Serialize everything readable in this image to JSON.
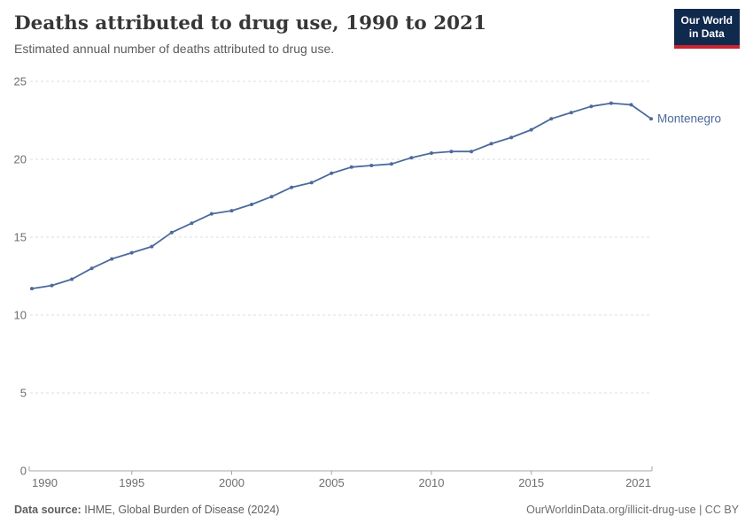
{
  "header": {
    "title": "Deaths attributed to drug use, 1990 to 2021",
    "subtitle": "Estimated annual number of deaths attributed to drug use.",
    "logo": {
      "line1": "Our World",
      "line2": "in Data"
    }
  },
  "chart_data": {
    "type": "line",
    "title": "Deaths attributed to drug use, 1990 to 2021",
    "xlabel": "",
    "ylabel": "",
    "x": [
      1990,
      1991,
      1992,
      1993,
      1994,
      1995,
      1996,
      1997,
      1998,
      1999,
      2000,
      2001,
      2002,
      2003,
      2004,
      2005,
      2006,
      2007,
      2008,
      2009,
      2010,
      2011,
      2012,
      2013,
      2014,
      2015,
      2016,
      2017,
      2018,
      2019,
      2020,
      2021
    ],
    "series": [
      {
        "name": "Montenegro",
        "color": "#4c6a9c",
        "values": [
          11.7,
          11.9,
          12.3,
          13.0,
          13.6,
          14.0,
          14.4,
          15.3,
          15.9,
          16.5,
          16.7,
          17.1,
          17.6,
          18.2,
          18.5,
          19.1,
          19.5,
          19.6,
          19.7,
          20.1,
          20.4,
          20.5,
          20.5,
          21.0,
          21.4,
          21.9,
          22.6,
          23.0,
          23.4,
          23.6,
          23.5,
          22.6
        ]
      }
    ],
    "end_label": "Montenegro",
    "ylim": [
      0,
      25
    ],
    "yticks": [
      0,
      5,
      10,
      15,
      20,
      25
    ],
    "xticks": [
      1990,
      1995,
      2000,
      2005,
      2010,
      2015,
      2021
    ],
    "grid": "horizontal-dashed",
    "legend_position": "end-of-line"
  },
  "footer": {
    "source_label": "Data source:",
    "source_value": "IHME, Global Burden of Disease (2024)",
    "credit": "OurWorldinData.org/illicit-drug-use | CC BY"
  },
  "colors": {
    "line": "#4c6a9c",
    "grid": "#dddddd",
    "axis": "#a5a5a5",
    "tick_label": "#6e6e6e",
    "title": "#373737",
    "subtitle": "#5b5b5b",
    "logo_bg": "#102a4e",
    "logo_stripe": "#cb2430"
  }
}
